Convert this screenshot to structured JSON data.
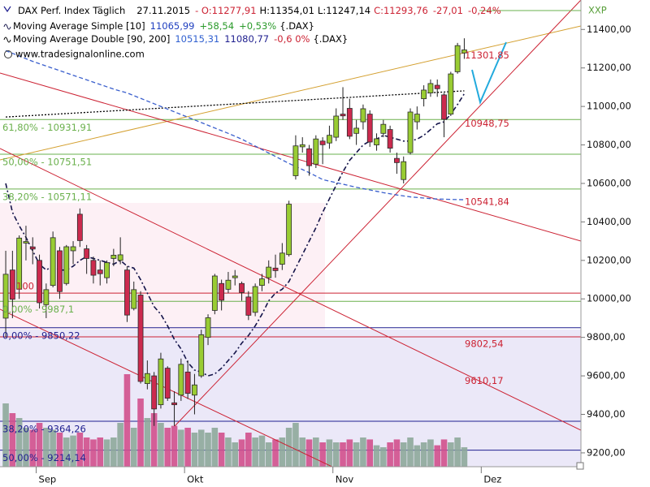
{
  "chart_data": {
    "type": "candlestick",
    "header": {
      "instrument": "DAX Perf. Index Täglich",
      "date": "27.11.2015",
      "open": "- O:11277,91",
      "high": "H:11354,01",
      "low": "L:11247,14",
      "close": "C:11293,76",
      "change": "-27,01",
      "change_pct": "-0,24%"
    },
    "legend": [
      {
        "name": "Moving Average Simple [10]",
        "values": [
          "11065,99",
          "+58,54",
          "+0,53%"
        ],
        "source": "{.DAX}"
      },
      {
        "name": "Moving Average Double [90, 200]",
        "values": [
          "10515,31",
          "11080,77",
          "-0,6 0%"
        ],
        "source": "{.DAX}"
      }
    ],
    "website": "www.tradesignalonline.com",
    "logo": "XXP",
    "open": [
      9900,
      10150,
      10050,
      10290,
      10270,
      10200,
      9970,
      10070,
      10250,
      10080,
      10250,
      10440,
      10260,
      10200,
      10150,
      10110,
      10210,
      10200,
      10150,
      9950,
      10020,
      9560,
      9600,
      9450,
      9640,
      9460,
      9500,
      9620,
      9500,
      9600,
      9800,
      9940,
      10080,
      10050,
      10110,
      10080,
      10010,
      9930,
      10070,
      10110,
      10160,
      10180,
      10230,
      10640,
      10790,
      10780,
      10700,
      10820,
      10810,
      10840,
      10960,
      10990,
      10860,
      10920,
      10960,
      10800,
      10860,
      10880,
      10730,
      10620,
      10760,
      10920,
      11040,
      11070,
      11110,
      11060,
      10960,
      11180,
      11277.91
    ],
    "high": [
      10250,
      10250,
      10330,
      10380,
      10320,
      10230,
      10080,
      10350,
      10270,
      10280,
      10300,
      10470,
      10280,
      10220,
      10200,
      10200,
      10260,
      10320,
      10170,
      10090,
      10040,
      9680,
      9620,
      9720,
      9650,
      9520,
      9690,
      9680,
      9610,
      9840,
      9920,
      10130,
      10100,
      10140,
      10150,
      10090,
      10040,
      10080,
      10130,
      10200,
      10230,
      10290,
      10510,
      10850,
      10840,
      10800,
      10850,
      10840,
      10900,
      10990,
      11100,
      11040,
      10930,
      11010,
      10980,
      10860,
      10930,
      10900,
      10760,
      10740,
      10990,
      11000,
      11110,
      11140,
      11140,
      11070,
      11180,
      11330,
      11354.01
    ],
    "low": [
      9800,
      9900,
      10000,
      10200,
      10180,
      9950,
      9900,
      10060,
      10000,
      10070,
      10180,
      10270,
      10130,
      10080,
      10070,
      10080,
      10170,
      10180,
      9880,
      9940,
      9560,
      9530,
      9340,
      9430,
      9470,
      9340,
      9470,
      9480,
      9400,
      9590,
      9760,
      9920,
      9940,
      10030,
      10070,
      9990,
      9890,
      9910,
      10040,
      10080,
      10110,
      10150,
      10220,
      10620,
      10760,
      10640,
      10680,
      10700,
      10780,
      10820,
      10930,
      10830,
      10800,
      10880,
      10790,
      10770,
      10840,
      10760,
      10650,
      10600,
      10750,
      10880,
      11000,
      11050,
      11050,
      10840,
      10950,
      11170,
      11247.14
    ],
    "close": [
      10128,
      9998,
      10316,
      10298,
      10259,
      9980,
      10048,
      10318,
      10038,
      10271,
      10271,
      10303,
      10210,
      10123,
      10131,
      10188,
      10227,
      10229,
      9916,
      10048,
      9571,
      9612,
      9428,
      9688,
      9484,
      9450,
      9660,
      9509,
      9553,
      9814,
      9902,
      10119,
      9993,
      10097,
      10119,
      10033,
      9915,
      10064,
      10104,
      10165,
      10147,
      10238,
      10492,
      10795,
      10801,
      10692,
      10831,
      10801,
      10850,
      10950,
      10951,
      10845,
      10887,
      10988,
      10815,
      10832,
      10907,
      10783,
      10708,
      10713,
      10971,
      10960,
      11085,
      11119,
      11092,
      10933,
      11169,
      11316,
      11293.76
    ],
    "up_color": "#99cc33",
    "down_color": "#cc2a4e",
    "volume": [
      65,
      55,
      50,
      40,
      38,
      45,
      40,
      38,
      35,
      30,
      32,
      35,
      30,
      28,
      30,
      28,
      30,
      45,
      95,
      40,
      70,
      50,
      55,
      45,
      40,
      42,
      38,
      40,
      35,
      38,
      35,
      40,
      35,
      30,
      25,
      28,
      35,
      30,
      32,
      25,
      28,
      30,
      40,
      45,
      30,
      28,
      30,
      25,
      28,
      25,
      25,
      28,
      25,
      30,
      28,
      22,
      20,
      25,
      28,
      25,
      30,
      22,
      25,
      28,
      22,
      28,
      25,
      30,
      20
    ],
    "vlim": [
      0,
      100
    ],
    "volume_up_color": "#8ea89a",
    "volume_down_color": "#d2508c",
    "moving_averages": [
      {
        "color": "#14144a",
        "style": "dash-dot",
        "values": [
          10600,
          10450,
          10380,
          10320,
          10250,
          10180,
          10150,
          10170,
          10150,
          10150,
          10170,
          10200,
          10220,
          10210,
          10200,
          10190,
          10180,
          10200,
          10170,
          10160,
          10100,
          10030,
          9960,
          9920,
          9860,
          9790,
          9740,
          9670,
          9630,
          9620,
          9600,
          9610,
          9640,
          9680,
          9720,
          9770,
          9810,
          9860,
          9920,
          9990,
          10030,
          10050,
          10090,
          10160,
          10230,
          10300,
          10370,
          10450,
          10520,
          10590,
          10660,
          10720,
          10760,
          10800,
          10820,
          10830,
          10850,
          10840,
          10830,
          10820,
          10820,
          10830,
          10850,
          10880,
          10910,
          10920,
          10960,
          11010,
          11066
        ]
      },
      {
        "color": "#000000",
        "style": "dotted",
        "values": [
          10945,
          10947,
          10949,
          10951,
          10953,
          10955,
          10957,
          10959,
          10961,
          10963,
          10965,
          10967,
          10969,
          10971,
          10973,
          10975,
          10977,
          10979,
          10981,
          10983,
          10985,
          10987,
          10989,
          10991,
          10993,
          10995,
          10997,
          10999,
          11001,
          11003,
          11005,
          11007,
          11009,
          11011,
          11013,
          11015,
          11017,
          11019,
          11021,
          11023,
          11025,
          11027,
          11029,
          11031,
          11033,
          11035,
          11037,
          11039,
          11041,
          11043,
          11045,
          11047,
          11049,
          11051,
          11053,
          11055,
          11057,
          11059,
          11061,
          11063,
          11065,
          11067,
          11069,
          11071,
          11073,
          11075,
          11077,
          11079,
          11081
        ]
      },
      {
        "color": "#3a5fcd",
        "style": "dashed",
        "values": [
          11290,
          11276,
          11262,
          11248,
          11234,
          11222,
          11210,
          11198,
          11186,
          11174,
          11162,
          11150,
          11138,
          11126,
          11114,
          11102,
          11090,
          11080,
          11070,
          11056,
          11042,
          11028,
          11014,
          11000,
          10986,
          10972,
          10958,
          10944,
          10930,
          10916,
          10902,
          10888,
          10874,
          10860,
          10845,
          10830,
          10812,
          10794,
          10776,
          10758,
          10740,
          10722,
          10704,
          10688,
          10672,
          10656,
          10638,
          10620,
          10612,
          10604,
          10596,
          10588,
          10580,
          10573,
          10566,
          10559,
          10552,
          10546,
          10540,
          10535,
          10530,
          10527,
          10524,
          10521,
          10519,
          10518,
          10517,
          10516,
          10515
        ]
      }
    ],
    "levels": [
      {
        "label": "61,80% - 10931,91",
        "value": 10931.91,
        "color": "#6ab04c",
        "anchor": "left"
      },
      {
        "label": "50,00% - 10751,51",
        "value": 10751.51,
        "color": "#6ab04c",
        "anchor": "left"
      },
      {
        "label": "38,20% - 10571,11",
        "value": 10571.11,
        "color": "#6ab04c",
        "anchor": "left"
      },
      {
        "label": "100",
        "value": 10030,
        "color": "#cc2233",
        "anchor": "above"
      },
      {
        "label": "0,00% - 9987,1",
        "value": 9987.1,
        "color": "#6ab04c",
        "anchor": "left"
      },
      {
        "label": "0,00% - 9850,22",
        "value": 9850.22,
        "color": "#1f1f8f",
        "anchor": "left"
      },
      {
        "label": "9802,54",
        "value": 9802.54,
        "color": "#cc2233",
        "anchor": "right"
      },
      {
        "label": "38,20% - 9364,26",
        "value": 9364.26,
        "color": "#1f1f8f",
        "anchor": "left"
      },
      {
        "label": "50,00% - 9214,14",
        "value": 9214.14,
        "color": "#1f1f8f",
        "anchor": "left"
      }
    ],
    "price_labels": [
      {
        "label": "11301,85",
        "value": 11301.85
      },
      {
        "label": "10948,75",
        "value": 10948.75
      },
      {
        "label": "10541,84",
        "value": 10541.84
      },
      {
        "label": "9610,17",
        "value": 9610.17
      }
    ],
    "price_label_color": "#cc2233",
    "ylim": [
      9128,
      11553
    ],
    "yticks": [
      {
        "value": 9200,
        "label": "9200,00"
      },
      {
        "value": 9400,
        "label": "9400,00"
      },
      {
        "value": 9600,
        "label": "9600,00"
      },
      {
        "value": 9800,
        "label": "9800,00"
      },
      {
        "value": 10000,
        "label": "10000,00"
      },
      {
        "value": 10200,
        "label": "10200,00"
      },
      {
        "value": 10400,
        "label": "10400,00"
      },
      {
        "value": 10600,
        "label": "10600,00"
      },
      {
        "value": 10800,
        "label": "10800,00"
      },
      {
        "value": 11000,
        "label": "11000,00"
      },
      {
        "value": 11200,
        "label": "11200,00"
      },
      {
        "value": 11400,
        "label": "11400,00"
      }
    ],
    "xlim": [
      -0.85,
      85.3
    ],
    "xticks": [
      {
        "value": 5,
        "label": "Sep"
      },
      {
        "value": 27,
        "label": "Okt"
      },
      {
        "value": 49,
        "label": "Nov"
      },
      {
        "value": 71,
        "label": "Dez"
      }
    ]
  }
}
